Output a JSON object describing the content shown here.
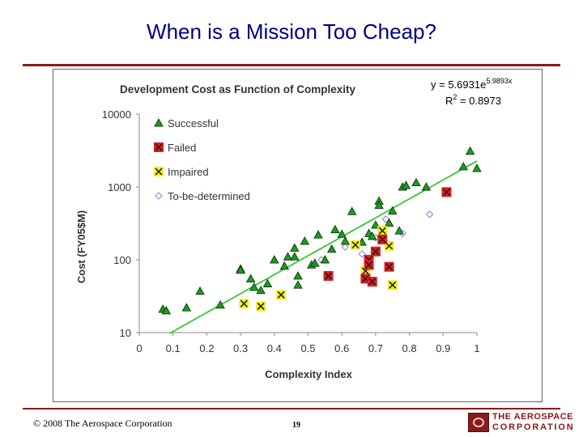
{
  "slide": {
    "title": "When is a Mission Too Cheap?",
    "copyright": "© 2008 The Aerospace Corporation",
    "page_number": "19",
    "logo_line1": "THE AEROSPACE",
    "logo_line2": "CORPORATION",
    "accent_color": "#8b1a1a",
    "title_color": "#000080"
  },
  "chart_data": {
    "type": "scatter",
    "title": "Development Cost as Function of Complexity",
    "xlabel": "Complexity Index",
    "ylabel": "Cost (FY05$M)",
    "xlim": [
      0,
      1
    ],
    "ylim": [
      10,
      10000
    ],
    "y_scale": "log",
    "x_ticks": [
      "0",
      "0.1",
      "0.2",
      "0.3",
      "0.4",
      "0.5",
      "0.6",
      "0.7",
      "0.8",
      "0.9",
      "1"
    ],
    "y_ticks": [
      "10",
      "100",
      "1000",
      "10000"
    ],
    "grid": false,
    "legend_position": "top-left",
    "fit": {
      "equation": "y = 5.6931e",
      "equation_exponent": "5.9893x",
      "r2_label": "R",
      "r2_exp": "2",
      "r2_value": " = 0.8973",
      "a": 5.6931,
      "b": 5.9893,
      "x_range": [
        0.09,
        1.0
      ],
      "color": "#22c322"
    },
    "series": [
      {
        "name": "Successful",
        "marker": "triangle",
        "color": "#1f9a1f",
        "points": [
          [
            0.07,
            21
          ],
          [
            0.08,
            20
          ],
          [
            0.14,
            22
          ],
          [
            0.18,
            37
          ],
          [
            0.24,
            24
          ],
          [
            0.3,
            75
          ],
          [
            0.3,
            72
          ],
          [
            0.33,
            55
          ],
          [
            0.34,
            42
          ],
          [
            0.36,
            38
          ],
          [
            0.38,
            47
          ],
          [
            0.4,
            100
          ],
          [
            0.43,
            82
          ],
          [
            0.44,
            110
          ],
          [
            0.46,
            145
          ],
          [
            0.46,
            110
          ],
          [
            0.47,
            60
          ],
          [
            0.47,
            45
          ],
          [
            0.49,
            180
          ],
          [
            0.51,
            85
          ],
          [
            0.52,
            90
          ],
          [
            0.53,
            220
          ],
          [
            0.55,
            100
          ],
          [
            0.57,
            140
          ],
          [
            0.58,
            260
          ],
          [
            0.6,
            225
          ],
          [
            0.61,
            180
          ],
          [
            0.63,
            460
          ],
          [
            0.66,
            175
          ],
          [
            0.68,
            230
          ],
          [
            0.69,
            210
          ],
          [
            0.7,
            300
          ],
          [
            0.71,
            640
          ],
          [
            0.71,
            560
          ],
          [
            0.74,
            320
          ],
          [
            0.75,
            470
          ],
          [
            0.77,
            250
          ],
          [
            0.78,
            1000
          ],
          [
            0.79,
            1050
          ],
          [
            0.82,
            1150
          ],
          [
            0.85,
            1000
          ],
          [
            0.96,
            1900
          ],
          [
            0.98,
            3100
          ],
          [
            1.0,
            1800
          ]
        ]
      },
      {
        "name": "Failed",
        "marker": "red-x-square",
        "color": "#dd1e1e",
        "points": [
          [
            0.56,
            60
          ],
          [
            0.67,
            55
          ],
          [
            0.68,
            100
          ],
          [
            0.68,
            85
          ],
          [
            0.69,
            50
          ],
          [
            0.7,
            130
          ],
          [
            0.72,
            190
          ],
          [
            0.74,
            80
          ],
          [
            0.91,
            850
          ]
        ]
      },
      {
        "name": "Impaired",
        "marker": "yellow-x-square",
        "color": "#f2f21a",
        "points": [
          [
            0.31,
            25
          ],
          [
            0.36,
            23
          ],
          [
            0.42,
            33
          ],
          [
            0.64,
            160
          ],
          [
            0.67,
            70
          ],
          [
            0.72,
            250
          ],
          [
            0.74,
            155
          ],
          [
            0.75,
            45
          ]
        ]
      },
      {
        "name": "To-be-determined",
        "marker": "diamond",
        "color": "#a27cd4",
        "points": [
          [
            0.54,
            100
          ],
          [
            0.61,
            150
          ],
          [
            0.66,
            120
          ],
          [
            0.7,
            200
          ],
          [
            0.72,
            250
          ],
          [
            0.73,
            360
          ],
          [
            0.78,
            230
          ],
          [
            0.86,
            420
          ]
        ]
      }
    ]
  }
}
